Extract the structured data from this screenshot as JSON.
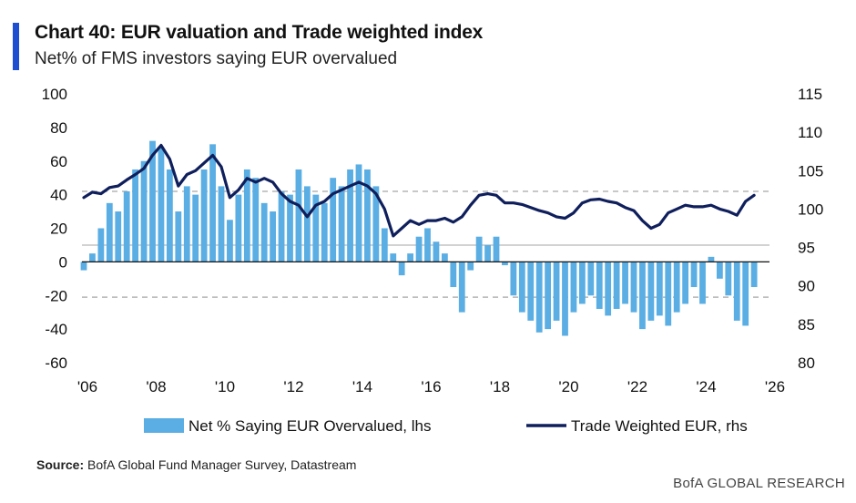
{
  "header": {
    "title": "Chart 40: EUR valuation and Trade weighted index",
    "subtitle": "Net% of FMS investors saying EUR overvalued"
  },
  "footer": {
    "source_label": "Source:",
    "source_text": "BofA Global Fund Manager Survey, Datastream",
    "brand": "BofA GLOBAL RESEARCH"
  },
  "colors": {
    "bars": "#5aaee3",
    "line": "#0f1f5c",
    "accent": "#1f4fd1",
    "dashed": "#b5b5b5",
    "solid_ref": "#c4c4c4",
    "zero": "#111111"
  },
  "chart_data": {
    "type": "bar+line",
    "title": "Chart 40: EUR valuation and Trade weighted index",
    "subtitle": "Net% of FMS investors saying EUR overvalued",
    "x_ticks": [
      "'06",
      "'08",
      "'10",
      "'12",
      "'14",
      "'16",
      "'18",
      "'20",
      "'22",
      "'24",
      "'26"
    ],
    "x_tick_years": [
      2006,
      2008,
      2010,
      2012,
      2014,
      2016,
      2018,
      2020,
      2022,
      2024,
      2026
    ],
    "xlim": [
      2006,
      2026
    ],
    "left_axis": {
      "ticks": [
        "100",
        "80",
        "60",
        "40",
        "20",
        "0",
        "-20",
        "-40",
        "-60"
      ],
      "lim": [
        -60,
        100
      ]
    },
    "right_axis": {
      "ticks": [
        "115",
        "110",
        "105",
        "100",
        "95",
        "90",
        "85",
        "80"
      ],
      "lim": [
        80,
        115
      ]
    },
    "reference_lines": [
      {
        "value": 42,
        "style": "dashed",
        "axis": "left"
      },
      {
        "value": 10,
        "style": "solid",
        "axis": "left"
      },
      {
        "value": -21,
        "style": "dashed",
        "axis": "left"
      }
    ],
    "series": [
      {
        "name": "Net % Saying EUR Overvalued, lhs",
        "type": "bar",
        "axis": "left",
        "x": [
          2006.0,
          2006.25,
          2006.5,
          2006.75,
          2007.0,
          2007.25,
          2007.5,
          2007.75,
          2008.0,
          2008.25,
          2008.5,
          2008.75,
          2009.0,
          2009.25,
          2009.5,
          2009.75,
          2010.0,
          2010.25,
          2010.5,
          2010.75,
          2011.0,
          2011.25,
          2011.5,
          2011.75,
          2012.0,
          2012.25,
          2012.5,
          2012.75,
          2013.0,
          2013.25,
          2013.5,
          2013.75,
          2014.0,
          2014.25,
          2014.5,
          2014.75,
          2015.0,
          2015.25,
          2015.5,
          2015.75,
          2016.0,
          2016.25,
          2016.5,
          2016.75,
          2017.0,
          2017.25,
          2017.5,
          2017.75,
          2018.0,
          2018.25,
          2018.5,
          2018.75,
          2019.0,
          2019.25,
          2019.5,
          2019.75,
          2020.0,
          2020.25,
          2020.5,
          2020.75,
          2021.0,
          2021.25,
          2021.5,
          2021.75,
          2022.0,
          2022.25,
          2022.5,
          2022.75,
          2023.0,
          2023.25,
          2023.5,
          2023.75,
          2024.0,
          2024.25,
          2024.5,
          2024.75,
          2025.0,
          2025.25,
          2025.5
        ],
        "values": [
          -5,
          5,
          20,
          35,
          30,
          42,
          55,
          60,
          72,
          68,
          55,
          30,
          45,
          40,
          55,
          70,
          45,
          25,
          40,
          55,
          50,
          35,
          30,
          42,
          40,
          55,
          45,
          40,
          35,
          50,
          45,
          55,
          58,
          55,
          45,
          20,
          5,
          -8,
          5,
          15,
          20,
          12,
          5,
          -15,
          -30,
          -5,
          15,
          10,
          15,
          -2,
          -20,
          -30,
          -35,
          -42,
          -40,
          -35,
          -44,
          -30,
          -25,
          -20,
          -28,
          -32,
          -28,
          -25,
          -30,
          -40,
          -35,
          -32,
          -38,
          -30,
          -25,
          -15,
          -25,
          3,
          -10,
          -20,
          -35,
          -38,
          -15
        ]
      },
      {
        "name": "Trade Weighted EUR, rhs",
        "type": "line",
        "axis": "right",
        "x": [
          2006.0,
          2006.25,
          2006.5,
          2006.75,
          2007.0,
          2007.25,
          2007.5,
          2007.75,
          2008.0,
          2008.25,
          2008.5,
          2008.75,
          2009.0,
          2009.25,
          2009.5,
          2009.75,
          2010.0,
          2010.25,
          2010.5,
          2010.75,
          2011.0,
          2011.25,
          2011.5,
          2011.75,
          2012.0,
          2012.25,
          2012.5,
          2012.75,
          2013.0,
          2013.25,
          2013.5,
          2013.75,
          2014.0,
          2014.25,
          2014.5,
          2014.75,
          2015.0,
          2015.25,
          2015.5,
          2015.75,
          2016.0,
          2016.25,
          2016.5,
          2016.75,
          2017.0,
          2017.25,
          2017.5,
          2017.75,
          2018.0,
          2018.25,
          2018.5,
          2018.75,
          2019.0,
          2019.25,
          2019.5,
          2019.75,
          2020.0,
          2020.25,
          2020.5,
          2020.75,
          2021.0,
          2021.25,
          2021.5,
          2021.75,
          2022.0,
          2022.25,
          2022.5,
          2022.75,
          2023.0,
          2023.25,
          2023.5,
          2023.75,
          2024.0,
          2024.25,
          2024.5,
          2024.75,
          2025.0,
          2025.25,
          2025.5
        ],
        "values": [
          101.5,
          102.2,
          102.0,
          102.8,
          103.0,
          103.8,
          104.5,
          105.3,
          107.0,
          108.3,
          106.5,
          103.0,
          104.5,
          105.0,
          106.0,
          107.0,
          105.5,
          101.5,
          102.5,
          104.0,
          103.5,
          104.0,
          103.5,
          102.0,
          101.0,
          100.5,
          99.0,
          100.5,
          101.0,
          102.0,
          102.5,
          103.0,
          103.5,
          103.0,
          102.0,
          100.0,
          96.5,
          97.5,
          98.5,
          98.0,
          98.5,
          98.5,
          98.8,
          98.3,
          99.0,
          100.5,
          101.8,
          102.0,
          101.8,
          100.8,
          100.8,
          100.6,
          100.2,
          99.8,
          99.5,
          99.0,
          98.8,
          99.5,
          100.8,
          101.2,
          101.3,
          101.0,
          100.8,
          100.2,
          99.8,
          98.5,
          97.5,
          98.0,
          99.5,
          100.0,
          100.5,
          100.3,
          100.3,
          100.5,
          100.0,
          99.7,
          99.2,
          101.0,
          101.8
        ]
      }
    ],
    "legend": [
      "Net % Saying EUR Overvalued, lhs",
      "Trade Weighted EUR, rhs"
    ],
    "legend_position": "bottom"
  }
}
